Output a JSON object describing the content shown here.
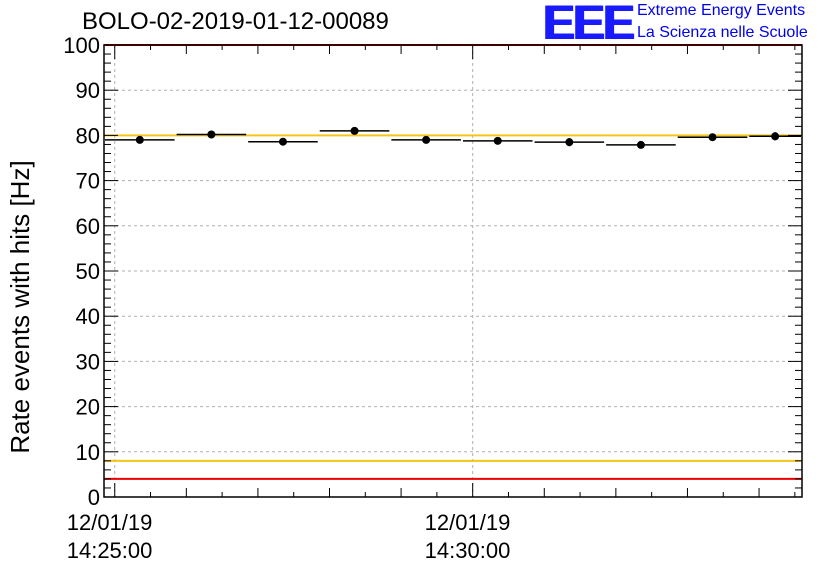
{
  "header": {
    "title": "BOLO-02-2019-01-12-00089",
    "logo_text": "EEE",
    "brand_line1": "Extreme Energy Events",
    "brand_line2": "La Scienza nelle Scuole"
  },
  "colors": {
    "red_limit": "#ee0000",
    "yellow_limit": "#f5c518",
    "grid": "#b0b0b0",
    "logo_blue": "#1a1aff"
  },
  "chart_data": {
    "type": "scatter",
    "title": "BOLO-02-2019-01-12-00089",
    "ylabel": "Rate events with hits [Hz]",
    "xlabel": "",
    "ylim": [
      0,
      100
    ],
    "yticks": [
      "0",
      "10",
      "20",
      "30",
      "40",
      "50",
      "60",
      "70",
      "80",
      "90",
      "100"
    ],
    "xticks": [
      {
        "date": "12/01/19",
        "time": "14:25:00",
        "minute": 0
      },
      {
        "date": "12/01/19",
        "time": "14:30:00",
        "minute": 5
      }
    ],
    "xlim_minutes": [
      -0.15,
      9.6
    ],
    "grid": true,
    "reference_lines": [
      {
        "y": 100,
        "color": "red"
      },
      {
        "y": 80,
        "color": "yellow"
      },
      {
        "y": 8,
        "color": "yellow"
      },
      {
        "y": 4,
        "color": "red"
      }
    ],
    "points": [
      {
        "x_start": -0.15,
        "x_end": 0.85,
        "y": 79,
        "err": 0.6
      },
      {
        "x_start": 0.85,
        "x_end": 1.85,
        "y": 80.2,
        "err": 0.7
      },
      {
        "x_start": 1.85,
        "x_end": 2.85,
        "y": 78.6,
        "err": 0.7
      },
      {
        "x_start": 2.85,
        "x_end": 3.85,
        "y": 81,
        "err": 0.7
      },
      {
        "x_start": 3.85,
        "x_end": 4.85,
        "y": 79,
        "err": 0.6
      },
      {
        "x_start": 4.85,
        "x_end": 5.85,
        "y": 78.8,
        "err": 0.6
      },
      {
        "x_start": 5.85,
        "x_end": 6.85,
        "y": 78.5,
        "err": 0.9
      },
      {
        "x_start": 6.85,
        "x_end": 7.85,
        "y": 77.9,
        "err": 0.7
      },
      {
        "x_start": 7.85,
        "x_end": 8.85,
        "y": 79.6,
        "err": 0.7
      },
      {
        "x_start": 8.85,
        "x_end": 9.6,
        "y": 79.8,
        "err": 0.9
      }
    ]
  }
}
